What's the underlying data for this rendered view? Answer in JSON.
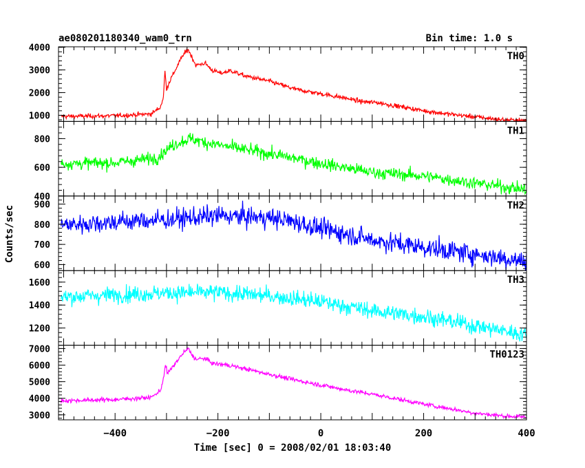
{
  "header": {
    "title": "ae080201180340_wam0_trn",
    "bin_time": "Bin time: 1.0 s"
  },
  "chart_data": {
    "type": "line",
    "xlabel": "Time [sec] 0 = 2008/02/01 18:03:40",
    "ylabel": "Counts/sec",
    "xlim": [
      -510,
      400
    ],
    "xticks": [
      -400,
      -200,
      0,
      200,
      400
    ],
    "grid": false,
    "panels": [
      {
        "name": "TH0",
        "color": "#ff0000",
        "ylim": [
          730,
          4020
        ],
        "yticks": [
          1000,
          2000,
          3000,
          4000
        ],
        "noise": 70,
        "profile": [
          [
            -505,
            950
          ],
          [
            -400,
            980
          ],
          [
            -330,
            1060
          ],
          [
            -312,
            1350
          ],
          [
            -306,
            1800
          ],
          [
            -303,
            2950
          ],
          [
            -300,
            2150
          ],
          [
            -295,
            2450
          ],
          [
            -285,
            2900
          ],
          [
            -275,
            3350
          ],
          [
            -268,
            3650
          ],
          [
            -258,
            3900
          ],
          [
            -250,
            3550
          ],
          [
            -243,
            3200
          ],
          [
            -225,
            3300
          ],
          [
            -212,
            3000
          ],
          [
            -195,
            2850
          ],
          [
            -175,
            2970
          ],
          [
            -150,
            2750
          ],
          [
            -100,
            2500
          ],
          [
            -50,
            2150
          ],
          [
            0,
            1950
          ],
          [
            50,
            1750
          ],
          [
            80,
            1600
          ],
          [
            110,
            1560
          ],
          [
            150,
            1400
          ],
          [
            200,
            1200
          ],
          [
            250,
            1050
          ],
          [
            300,
            930
          ],
          [
            350,
            810
          ],
          [
            400,
            760
          ]
        ]
      },
      {
        "name": "TH1",
        "color": "#00ff00",
        "ylim": [
          400,
          920
        ],
        "yticks": [
          400,
          600,
          800
        ],
        "noise": 30,
        "profile": [
          [
            -505,
            625
          ],
          [
            -400,
            632
          ],
          [
            -320,
            665
          ],
          [
            -285,
            760
          ],
          [
            -255,
            800
          ],
          [
            -220,
            770
          ],
          [
            -150,
            725
          ],
          [
            -100,
            695
          ],
          [
            0,
            628
          ],
          [
            100,
            565
          ],
          [
            200,
            540
          ],
          [
            300,
            490
          ],
          [
            400,
            445
          ]
        ]
      },
      {
        "name": "TH2",
        "color": "#0000ff",
        "ylim": [
          570,
          940
        ],
        "yticks": [
          600,
          700,
          800,
          900
        ],
        "noise": 35,
        "profile": [
          [
            -505,
            795
          ],
          [
            -400,
            812
          ],
          [
            -300,
            822
          ],
          [
            -250,
            832
          ],
          [
            -200,
            842
          ],
          [
            -100,
            832
          ],
          [
            -50,
            812
          ],
          [
            0,
            778
          ],
          [
            50,
            752
          ],
          [
            100,
            722
          ],
          [
            200,
            686
          ],
          [
            300,
            652
          ],
          [
            400,
            615
          ]
        ]
      },
      {
        "name": "TH3",
        "color": "#00ffff",
        "ylim": [
          1050,
          1700
        ],
        "yticks": [
          1200,
          1400,
          1600
        ],
        "noise": 50,
        "profile": [
          [
            -505,
            1470
          ],
          [
            -400,
            1490
          ],
          [
            -300,
            1505
          ],
          [
            -200,
            1510
          ],
          [
            -100,
            1480
          ],
          [
            0,
            1430
          ],
          [
            100,
            1350
          ],
          [
            200,
            1300
          ],
          [
            300,
            1220
          ],
          [
            400,
            1140
          ]
        ]
      },
      {
        "name": "TH0123",
        "color": "#ff00ff",
        "ylim": [
          2700,
          7200
        ],
        "yticks": [
          3000,
          4000,
          5000,
          6000,
          7000
        ],
        "noise": 90,
        "profile": [
          [
            -505,
            3850
          ],
          [
            -400,
            3920
          ],
          [
            -330,
            4050
          ],
          [
            -312,
            4450
          ],
          [
            -306,
            5200
          ],
          [
            -302,
            6000
          ],
          [
            -298,
            5500
          ],
          [
            -290,
            5800
          ],
          [
            -278,
            6300
          ],
          [
            -268,
            6700
          ],
          [
            -258,
            7000
          ],
          [
            -250,
            6600
          ],
          [
            -243,
            6350
          ],
          [
            -225,
            6400
          ],
          [
            -210,
            6100
          ],
          [
            -180,
            6000
          ],
          [
            -150,
            5800
          ],
          [
            -100,
            5450
          ],
          [
            -50,
            5100
          ],
          [
            0,
            4800
          ],
          [
            50,
            4500
          ],
          [
            100,
            4250
          ],
          [
            150,
            3950
          ],
          [
            200,
            3650
          ],
          [
            250,
            3380
          ],
          [
            300,
            3100
          ],
          [
            350,
            2950
          ],
          [
            400,
            2850
          ]
        ]
      }
    ]
  }
}
